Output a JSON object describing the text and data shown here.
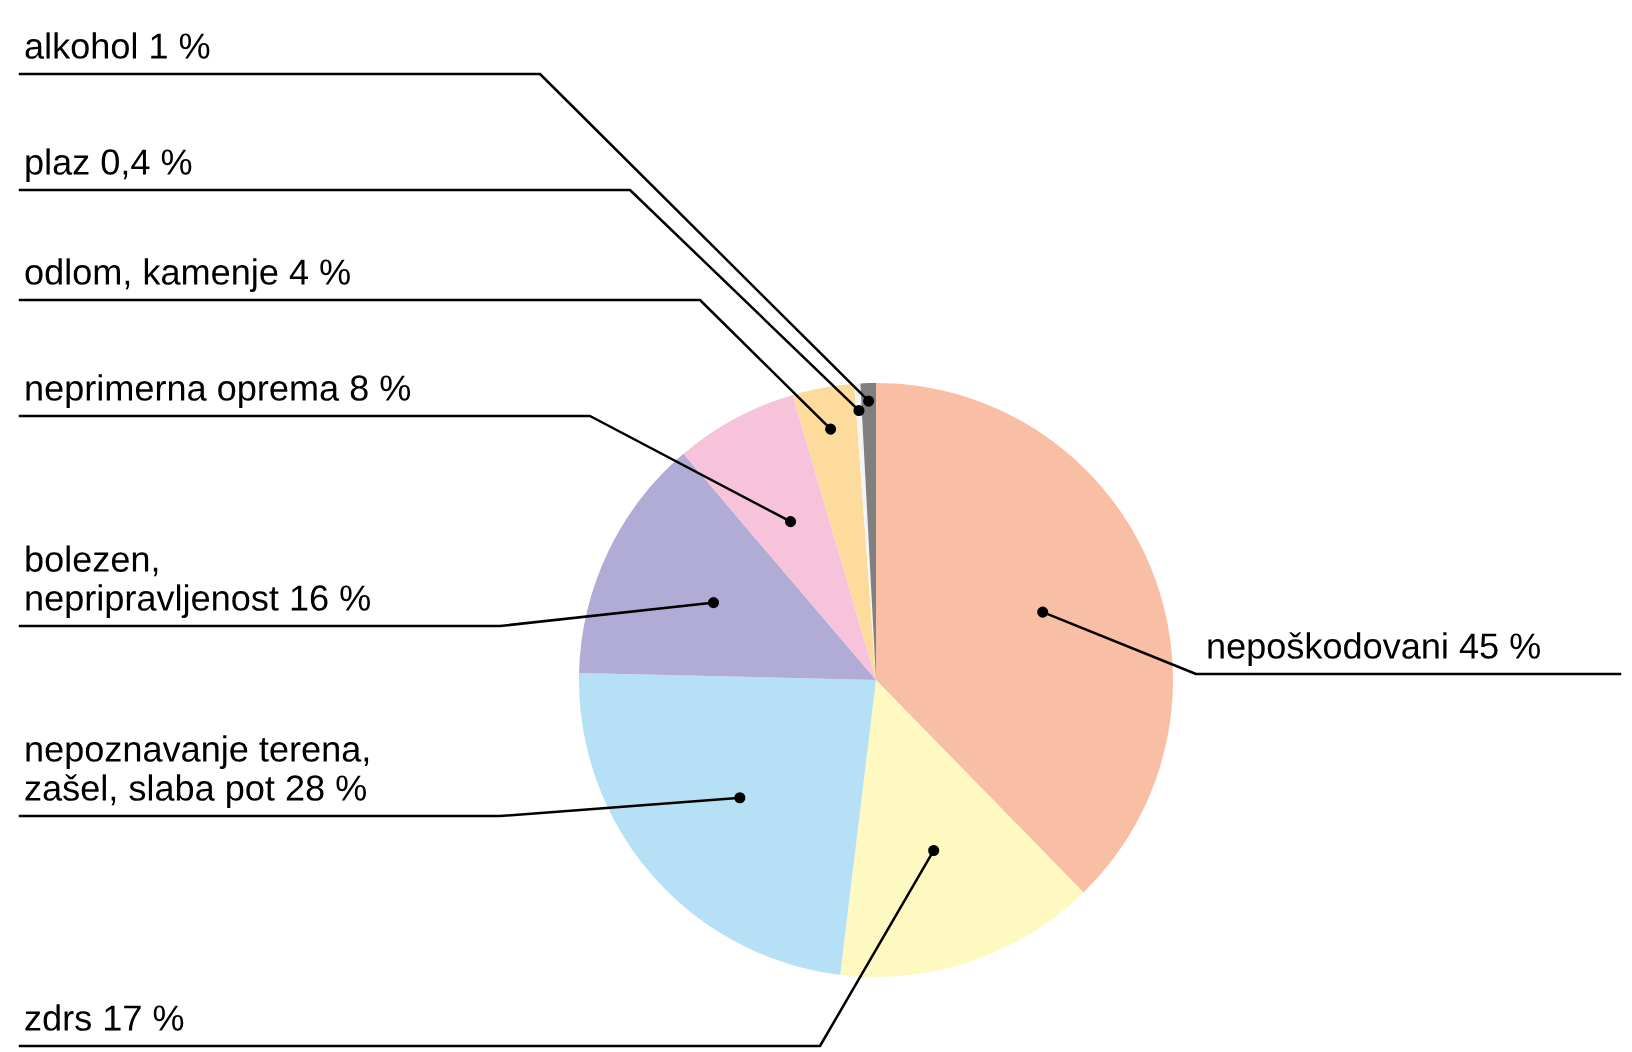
{
  "chart_data": {
    "type": "pie",
    "categories": [
      "nepoškodovani",
      "zdrs",
      "nepoznavanje terena,\nzašel, slaba pot",
      "bolezen,\nnepripravljenost",
      "neprimerna oprema",
      "odlom, kamenje",
      "plaz",
      "alkohol"
    ],
    "values": [
      45,
      17,
      28,
      16,
      8,
      4,
      0.4,
      1
    ],
    "value_labels": [
      "45 %",
      "17 %",
      "28 %",
      "16 %",
      "8 %",
      "4 %",
      "0,4 %",
      "1 %"
    ],
    "colors": [
      "#f9bfa5",
      "#fef9c0",
      "#b5e0f5",
      "#b0acd6",
      "#f6c3db",
      "#fddb9c",
      "#f4f4f4",
      "#808080"
    ],
    "legend": false
  }
}
